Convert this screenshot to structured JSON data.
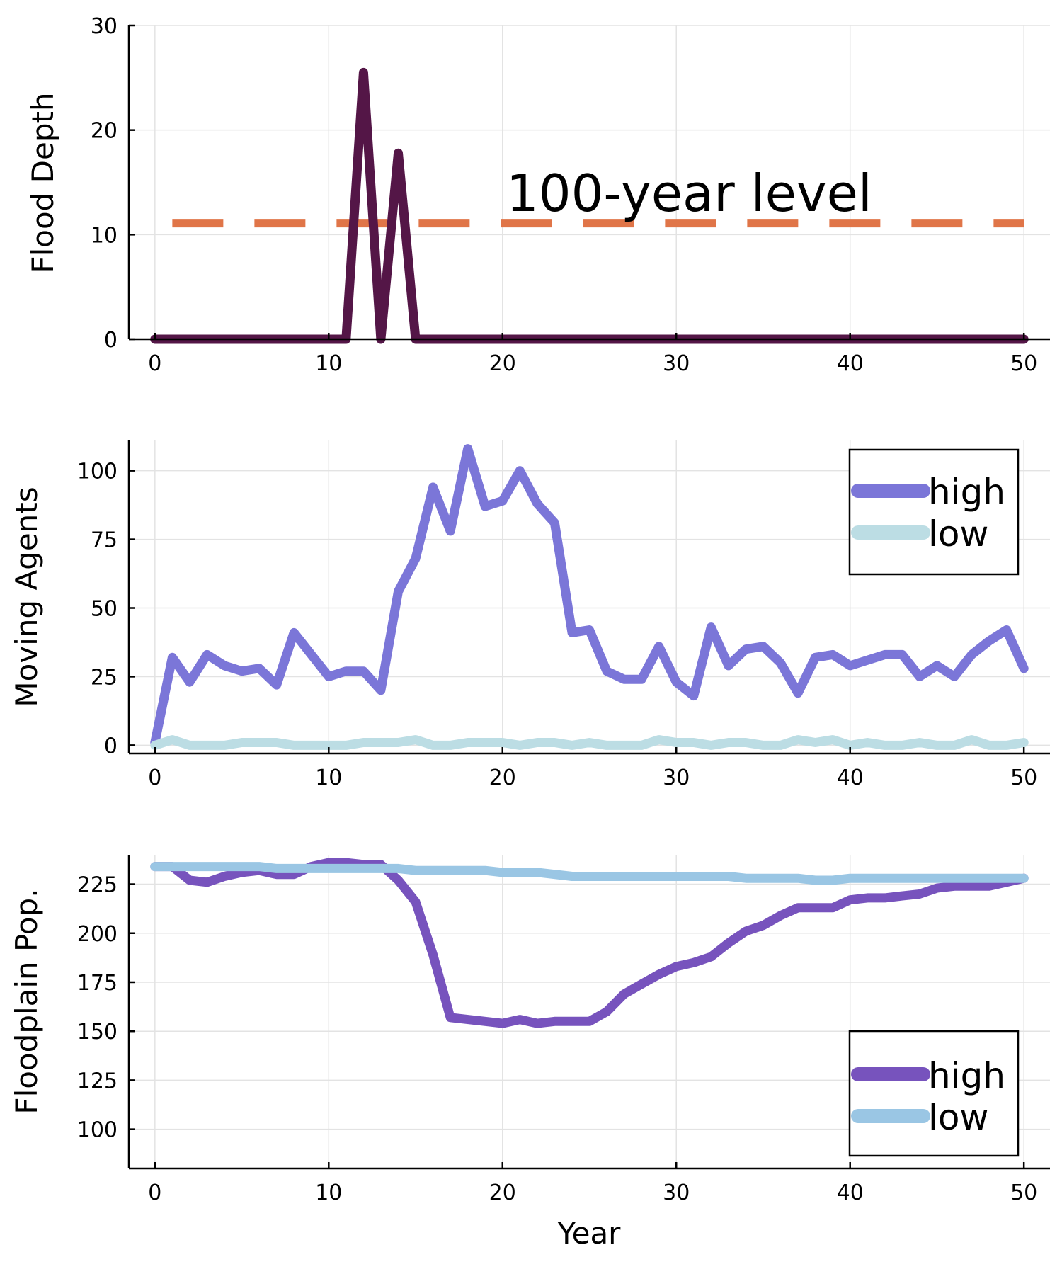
{
  "chart_data": [
    {
      "type": "line",
      "ylabel": "Flood Depth",
      "xlim": [
        -1.5,
        51.5
      ],
      "ylim": [
        0,
        30
      ],
      "xticks": [
        0,
        10,
        20,
        30,
        40,
        50
      ],
      "yticks": [
        0,
        10,
        20,
        30
      ],
      "grid": true,
      "legend": "none",
      "series": [
        {
          "color": "#541647",
          "x": [
            0,
            11,
            12,
            13,
            14,
            15,
            50
          ],
          "y": [
            0,
            0,
            25.5,
            0,
            17.8,
            0,
            0
          ]
        }
      ],
      "reference_line": {
        "y": 11.1,
        "x_range": [
          1,
          50
        ],
        "style": "dashed",
        "color": "#e07548"
      },
      "annotation": {
        "text": "100-year level",
        "x": 20,
        "y": 12,
        "color": "#d36c3f"
      }
    },
    {
      "type": "line",
      "ylabel": "Moving Agents",
      "xlim": [
        -1.5,
        51.5
      ],
      "ylim": [
        -3,
        111
      ],
      "xticks": [
        0,
        10,
        20,
        30,
        40,
        50
      ],
      "yticks": [
        0,
        25,
        50,
        75,
        100
      ],
      "grid": true,
      "legend": "top-right",
      "series": [
        {
          "name": "high",
          "color": "#7b76d8",
          "x": [
            0,
            1,
            2,
            3,
            4,
            5,
            6,
            7,
            8,
            9,
            10,
            11,
            12,
            13,
            14,
            15,
            16,
            17,
            18,
            19,
            20,
            21,
            22,
            23,
            24,
            25,
            26,
            27,
            28,
            29,
            30,
            31,
            32,
            33,
            34,
            35,
            36,
            37,
            38,
            39,
            40,
            41,
            42,
            43,
            44,
            45,
            46,
            47,
            48,
            49,
            50
          ],
          "y": [
            1,
            32,
            23,
            33,
            29,
            27,
            28,
            22,
            41,
            33,
            25,
            27,
            27,
            20,
            56,
            68,
            94,
            78,
            108,
            87,
            89,
            100,
            88,
            81,
            41,
            42,
            27,
            24,
            24,
            36,
            23,
            18,
            43,
            29,
            35,
            36,
            30,
            19,
            32,
            33,
            29,
            31,
            33,
            33,
            25,
            29,
            25,
            33,
            38,
            42,
            28
          ]
        },
        {
          "name": "low",
          "color": "#bcdde4",
          "x": [
            0,
            1,
            2,
            3,
            4,
            5,
            6,
            7,
            8,
            9,
            10,
            11,
            12,
            13,
            14,
            15,
            16,
            17,
            18,
            19,
            20,
            21,
            22,
            23,
            24,
            25,
            26,
            27,
            28,
            29,
            30,
            31,
            32,
            33,
            34,
            35,
            36,
            37,
            38,
            39,
            40,
            41,
            42,
            43,
            44,
            45,
            46,
            47,
            48,
            49,
            50
          ],
          "y": [
            0,
            2,
            0,
            0,
            0,
            1,
            1,
            1,
            0,
            0,
            0,
            0,
            1,
            1,
            1,
            2,
            0,
            0,
            1,
            1,
            1,
            0,
            1,
            1,
            0,
            1,
            0,
            0,
            0,
            2,
            1,
            1,
            0,
            1,
            1,
            0,
            0,
            2,
            1,
            2,
            0,
            1,
            0,
            0,
            1,
            0,
            0,
            2,
            0,
            0,
            1
          ]
        }
      ]
    },
    {
      "type": "line",
      "xlabel": "Year",
      "ylabel": "Floodplain Pop.",
      "xlim": [
        -1.5,
        51.5
      ],
      "ylim": [
        80,
        240
      ],
      "xticks": [
        0,
        10,
        20,
        30,
        40,
        50
      ],
      "yticks": [
        100,
        125,
        150,
        175,
        200,
        225
      ],
      "grid": true,
      "legend": "bottom-right",
      "series": [
        {
          "name": "high",
          "color": "#7753bd",
          "x": [
            0,
            1,
            2,
            3,
            4,
            5,
            6,
            7,
            8,
            9,
            10,
            11,
            12,
            13,
            14,
            15,
            16,
            17,
            18,
            19,
            20,
            21,
            22,
            23,
            24,
            25,
            26,
            27,
            28,
            29,
            30,
            31,
            32,
            33,
            34,
            35,
            36,
            37,
            38,
            39,
            40,
            41,
            42,
            43,
            44,
            45,
            46,
            47,
            48,
            49,
            50
          ],
          "y": [
            234,
            234,
            227,
            226,
            229,
            231,
            232,
            230,
            230,
            234,
            236,
            236,
            235,
            235,
            227,
            216,
            189,
            157,
            156,
            155,
            154,
            156,
            154,
            155,
            155,
            155,
            160,
            169,
            174,
            179,
            183,
            185,
            188,
            195,
            201,
            204,
            209,
            213,
            213,
            213,
            217,
            218,
            218,
            219,
            220,
            223,
            224,
            224,
            224,
            226,
            228
          ]
        },
        {
          "name": "low",
          "color": "#9ac6e4",
          "x": [
            0,
            1,
            2,
            3,
            4,
            5,
            6,
            7,
            8,
            9,
            10,
            11,
            12,
            13,
            14,
            15,
            16,
            17,
            18,
            19,
            20,
            21,
            22,
            23,
            24,
            25,
            26,
            27,
            28,
            29,
            30,
            31,
            32,
            33,
            34,
            35,
            36,
            37,
            38,
            39,
            40,
            41,
            42,
            43,
            44,
            45,
            46,
            47,
            48,
            49,
            50
          ],
          "y": [
            234,
            234,
            234,
            234,
            234,
            234,
            234,
            233,
            233,
            233,
            233,
            233,
            233,
            233,
            233,
            232,
            232,
            232,
            232,
            232,
            231,
            231,
            231,
            230,
            229,
            229,
            229,
            229,
            229,
            229,
            229,
            229,
            229,
            229,
            228,
            228,
            228,
            228,
            227,
            227,
            228,
            228,
            228,
            228,
            228,
            228,
            228,
            228,
            228,
            228,
            228
          ]
        }
      ]
    }
  ]
}
